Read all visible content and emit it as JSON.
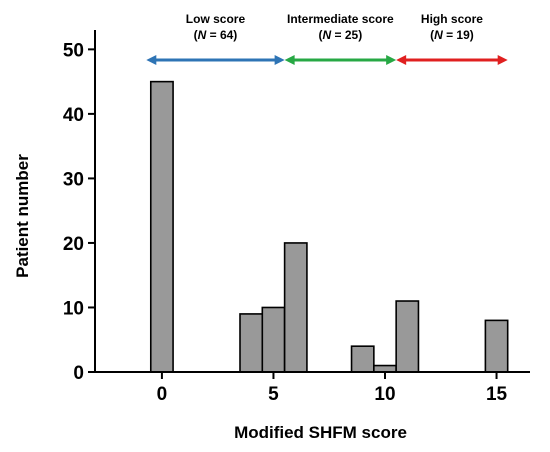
{
  "chart_data": {
    "type": "bar",
    "xlabel": "Modified SHFM score",
    "ylabel": "Patient number",
    "xlim": [
      -3,
      16.5
    ],
    "ylim": [
      0,
      53
    ],
    "x_ticks": [
      0,
      5,
      10,
      15
    ],
    "y_ticks": [
      0,
      10,
      20,
      30,
      40,
      50
    ],
    "x": [
      0,
      4,
      5,
      6,
      9,
      10,
      11,
      15
    ],
    "values": [
      45,
      9,
      10,
      20,
      4,
      1,
      11,
      8
    ],
    "bar_color": "#999999",
    "grid": false,
    "annotations": [
      {
        "label": "Low score",
        "n_label": "(N = 64)",
        "n_var": "N",
        "n_rest": " = 64",
        "from": -0.7,
        "to": 5.5,
        "color": "#2e74b5"
      },
      {
        "label": "Intermediate score",
        "n_label": "(N = 25)",
        "n_var": "N",
        "n_rest": " = 25",
        "from": 5.5,
        "to": 10.5,
        "color": "#27a844"
      },
      {
        "label": "High score",
        "n_label": "(N = 19)",
        "n_var": "N",
        "n_rest": " = 19",
        "from": 10.5,
        "to": 15.5,
        "color": "#e02020"
      }
    ]
  }
}
